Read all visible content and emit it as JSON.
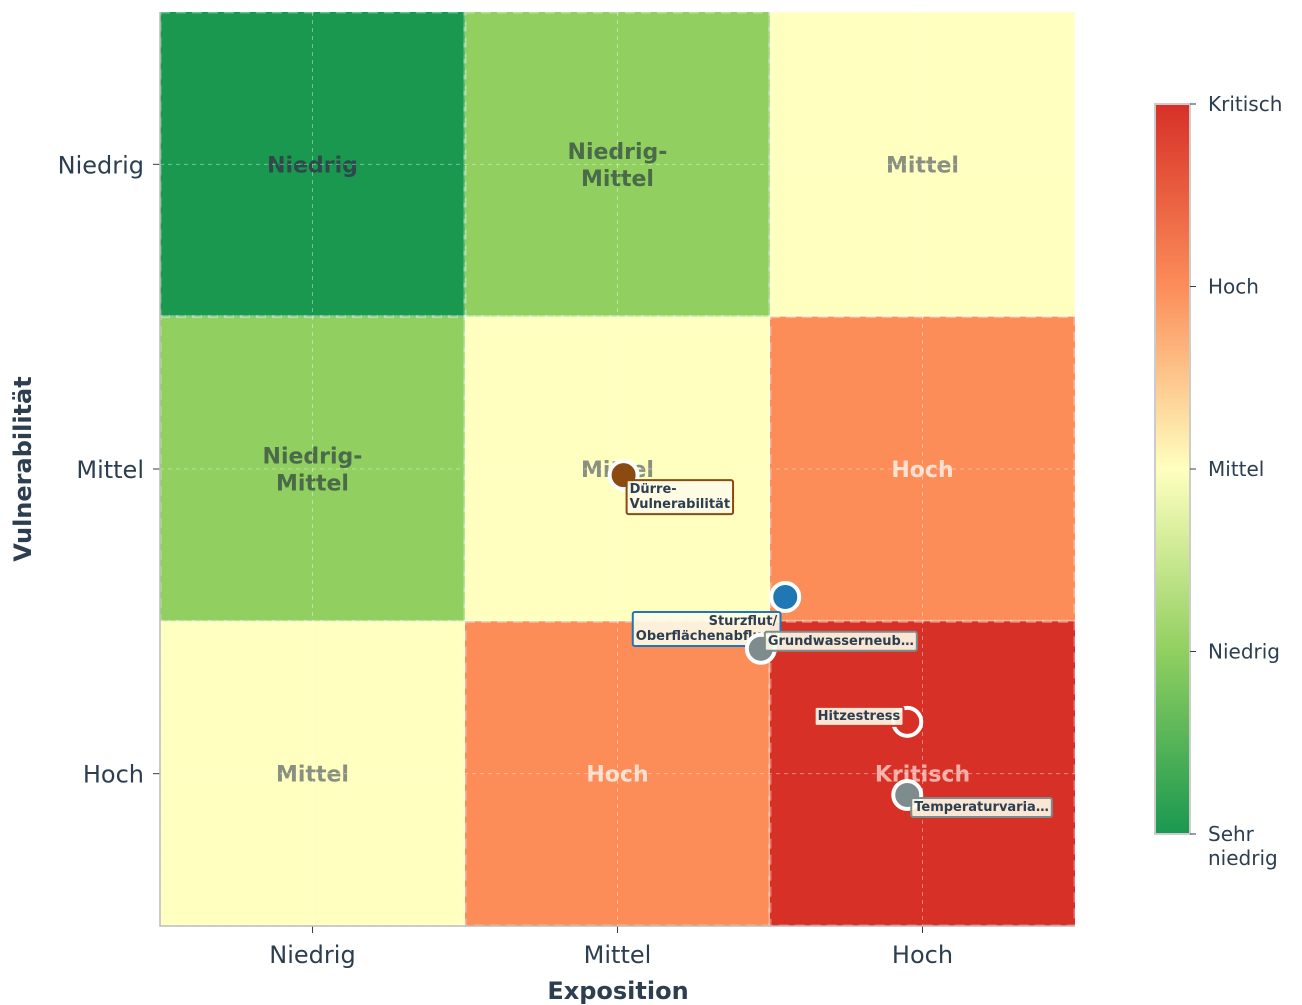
{
  "chart_data": {
    "type": "risk_matrix",
    "xlabel": "Exposition",
    "ylabel": "Vulnerabilität",
    "xlim": [
      0,
      3
    ],
    "ylim": [
      0,
      3
    ],
    "xticks": [
      {
        "value": 0.5,
        "label": "Niedrig"
      },
      {
        "value": 1.5,
        "label": "Mittel"
      },
      {
        "value": 2.5,
        "label": "Hoch"
      }
    ],
    "yticks": [
      {
        "value": 0.5,
        "label": "Hoch"
      },
      {
        "value": 1.5,
        "label": "Mittel"
      },
      {
        "value": 2.5,
        "label": "Niedrig"
      }
    ],
    "grid": true,
    "cells": [
      [
        {
          "label": "Niedrig",
          "color": "#1a9850",
          "text_color": "#2c4a4a"
        },
        {
          "label": "Niedrig-\nMittel",
          "color": "#91cf60",
          "text_color": "#4a6a4a"
        },
        {
          "label": "Mittel",
          "color": "#ffffbf",
          "text_color": "#8a9080"
        }
      ],
      [
        {
          "label": "Niedrig-\nMittel",
          "color": "#91cf60",
          "text_color": "#4a6a4a"
        },
        {
          "label": "Mittel",
          "color": "#ffffbf",
          "text_color": "#8a9080"
        },
        {
          "label": "Hoch",
          "color": "#fc8d59",
          "text_color": "#fde0d0"
        }
      ],
      [
        {
          "label": "Mittel",
          "color": "#ffffbf",
          "text_color": "#8a9080"
        },
        {
          "label": "Hoch",
          "color": "#fc8d59",
          "text_color": "#fde0d0"
        },
        {
          "label": "Kritisch",
          "color": "#d73027",
          "text_color": "#f4b0a8"
        }
      ]
    ],
    "points": [
      {
        "name": "Dürre-\nVulnerabilität",
        "x": 1.52,
        "y": 1.48,
        "color": "#8b4a0f"
      },
      {
        "name": "Sturzflut/\nOberflächenabfluss",
        "x": 2.05,
        "y": 1.08,
        "color": "#1f77b4"
      },
      {
        "name": "Grundwasserneub…",
        "x": 1.97,
        "y": 0.91,
        "color": "#7f8c8d"
      },
      {
        "name": "Hitzestress",
        "x": 2.45,
        "y": 0.67,
        "color": "#d73027"
      },
      {
        "name": "Temperaturvaria…",
        "x": 2.45,
        "y": 0.43,
        "color": "#7f8c8d"
      }
    ],
    "colorbar": {
      "colors": [
        "#1a9850",
        "#91cf60",
        "#ffffbf",
        "#fc8d59",
        "#d73027"
      ],
      "lim": [
        0,
        4
      ],
      "ticks": [
        {
          "value": 0,
          "label": "Sehr\nniedrig"
        },
        {
          "value": 1,
          "label": "Niedrig"
        },
        {
          "value": 2,
          "label": "Mittel"
        },
        {
          "value": 3,
          "label": "Hoch"
        },
        {
          "value": 4,
          "label": "Kritisch"
        }
      ]
    }
  }
}
